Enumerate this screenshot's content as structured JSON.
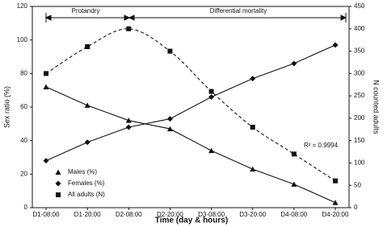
{
  "chart_data": {
    "type": "line",
    "x_label": "Time (day & hours)",
    "y_label": "Sex ratio (%)",
    "y2_label": "N counted adults",
    "annotations": [
      "Protandry",
      "Differential mortality",
      "R² = 0.9994"
    ],
    "categories": [
      "D1-08:00",
      "D1-20:00",
      "D2-08:00",
      "D2-20:00",
      "D3-08:00",
      "D3-20:00",
      "D4-08:00",
      "D4-20:00"
    ],
    "ylim": [
      0,
      120
    ],
    "yticks": [
      0,
      20,
      40,
      60,
      80,
      100,
      120
    ],
    "y2lim": [
      0,
      450
    ],
    "y2ticks": [
      0,
      50,
      100,
      150,
      200,
      250,
      300,
      350,
      400,
      450
    ],
    "legend": "lower left",
    "series": [
      {
        "name": "Males (%)",
        "color": "#111111",
        "marker": "triangle",
        "dash": false,
        "values": [
          72,
          61,
          52,
          47,
          34,
          23,
          14,
          3
        ]
      },
      {
        "name": "Females (%)",
        "color": "#111111",
        "marker": "diamond",
        "dash": false,
        "values": [
          28,
          39,
          48,
          53,
          66,
          77,
          86,
          97
        ]
      },
      {
        "name": "All adults (N)",
        "color": "#111111",
        "marker": "square",
        "dash": true,
        "axis": "y2",
        "smooth": true,
        "values": [
          300,
          360,
          400,
          350,
          260,
          180,
          120,
          60
        ]
      }
    ]
  }
}
